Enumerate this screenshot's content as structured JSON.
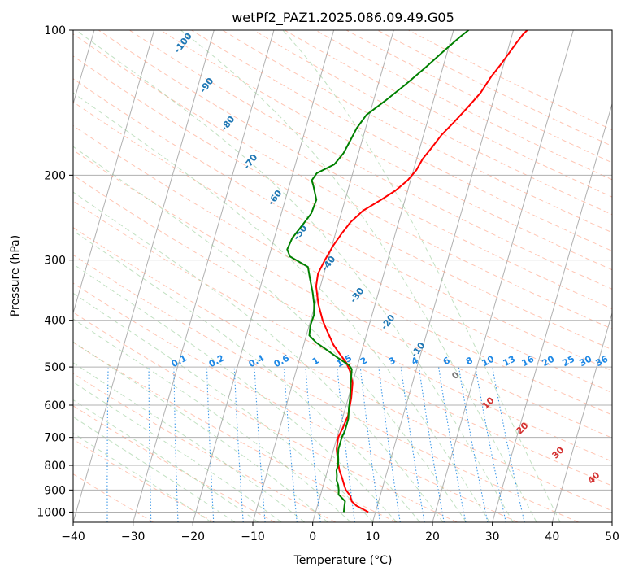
{
  "chart_data": {
    "type": "line",
    "title": "wetPf2_PAZ1.2025.086.09.49.G05",
    "xlabel": "Temperature (°C)",
    "ylabel": "Pressure (hPa)",
    "xlim": [
      -40,
      50
    ],
    "ylim": [
      1050,
      100
    ],
    "y_scale": "log",
    "x_ticks": [
      -40,
      -30,
      -20,
      -10,
      0,
      10,
      20,
      30,
      40,
      50
    ],
    "y_ticks": [
      100,
      200,
      300,
      400,
      500,
      600,
      700,
      800,
      900,
      1000
    ],
    "grid": true,
    "series": [
      {
        "color": "#ff0000",
        "points": [
          [
            8.8,
            1000
          ],
          [
            6.5,
            970
          ],
          [
            5.5,
            950
          ],
          [
            5.0,
            925
          ],
          [
            4.0,
            900
          ],
          [
            3.5,
            880
          ],
          [
            2.8,
            850
          ],
          [
            2.0,
            820
          ],
          [
            1.2,
            780
          ],
          [
            0.5,
            740
          ],
          [
            0.2,
            700
          ],
          [
            0.5,
            670
          ],
          [
            0.8,
            630
          ],
          [
            0.5,
            580
          ],
          [
            0.0,
            540
          ],
          [
            -1.0,
            510
          ],
          [
            -2.0,
            490
          ],
          [
            -3.5,
            470
          ],
          [
            -5.0,
            450
          ],
          [
            -6.8,
            420
          ],
          [
            -8.0,
            400
          ],
          [
            -9.5,
            370
          ],
          [
            -10.7,
            340
          ],
          [
            -11.0,
            320
          ],
          [
            -10.5,
            300
          ],
          [
            -9.8,
            280
          ],
          [
            -9.0,
            265
          ],
          [
            -8.0,
            250
          ],
          [
            -6.5,
            237
          ],
          [
            -4.0,
            225
          ],
          [
            -2.0,
            215
          ],
          [
            -0.5,
            205
          ],
          [
            0.5,
            195
          ],
          [
            1.0,
            185
          ],
          [
            2.0,
            175
          ],
          [
            3.0,
            165
          ],
          [
            4.5,
            155
          ],
          [
            6.0,
            145
          ],
          [
            7.5,
            135
          ],
          [
            8.5,
            125
          ],
          [
            9.5,
            118
          ],
          [
            10.3,
            112
          ],
          [
            11.0,
            107
          ],
          [
            11.8,
            102
          ],
          [
            12.3,
            100
          ]
        ]
      },
      {
        "color": "#008000",
        "points": [
          [
            4.7,
            1000
          ],
          [
            4.5,
            970
          ],
          [
            4.4,
            950
          ],
          [
            3.5,
            930
          ],
          [
            3.0,
            920
          ],
          [
            2.8,
            900
          ],
          [
            2.5,
            880
          ],
          [
            2.0,
            860
          ],
          [
            1.8,
            840
          ],
          [
            1.5,
            820
          ],
          [
            1.5,
            800
          ],
          [
            1.3,
            780
          ],
          [
            1.0,
            760
          ],
          [
            0.8,
            740
          ],
          [
            0.8,
            720
          ],
          [
            0.8,
            700
          ],
          [
            1.0,
            680
          ],
          [
            1.0,
            660
          ],
          [
            1.0,
            640
          ],
          [
            0.6,
            610
          ],
          [
            0.3,
            580
          ],
          [
            -0.3,
            540
          ],
          [
            -0.8,
            505
          ],
          [
            -1.5,
            495
          ],
          [
            -3.5,
            480
          ],
          [
            -6.0,
            460
          ],
          [
            -8.0,
            445
          ],
          [
            -9.5,
            430
          ],
          [
            -9.8,
            410
          ],
          [
            -9.7,
            390
          ],
          [
            -10.2,
            370
          ],
          [
            -11.0,
            350
          ],
          [
            -12.0,
            330
          ],
          [
            -13.0,
            310
          ],
          [
            -16.5,
            295
          ],
          [
            -17.3,
            285
          ],
          [
            -17.0,
            270
          ],
          [
            -16.0,
            255
          ],
          [
            -15.0,
            240
          ],
          [
            -14.8,
            225
          ],
          [
            -16.0,
            210
          ],
          [
            -16.5,
            205
          ],
          [
            -16.0,
            198
          ],
          [
            -13.5,
            190
          ],
          [
            -12.5,
            180
          ],
          [
            -12.0,
            170
          ],
          [
            -11.5,
            160
          ],
          [
            -10.5,
            150
          ],
          [
            -8.0,
            140
          ],
          [
            -5.5,
            130
          ],
          [
            -3.0,
            120
          ],
          [
            -0.5,
            110
          ],
          [
            1.5,
            103
          ],
          [
            2.5,
            100
          ]
        ]
      }
    ],
    "dry_adiabat_labels": [
      "-100",
      "-90",
      "-80",
      "-70",
      "-60",
      "-50",
      "-40",
      "-30",
      "-20",
      "-10"
    ],
    "mixing_ratio_labels": [
      "0.1",
      "0.2",
      "0.4",
      "0.6",
      "1",
      "1.5",
      "2",
      "3",
      "4",
      "6",
      "8",
      "10",
      "13",
      "16",
      "20",
      "25",
      "30",
      "36"
    ],
    "moist_adiabat_labels": [
      "0",
      "10",
      "20",
      "30",
      "40"
    ]
  }
}
